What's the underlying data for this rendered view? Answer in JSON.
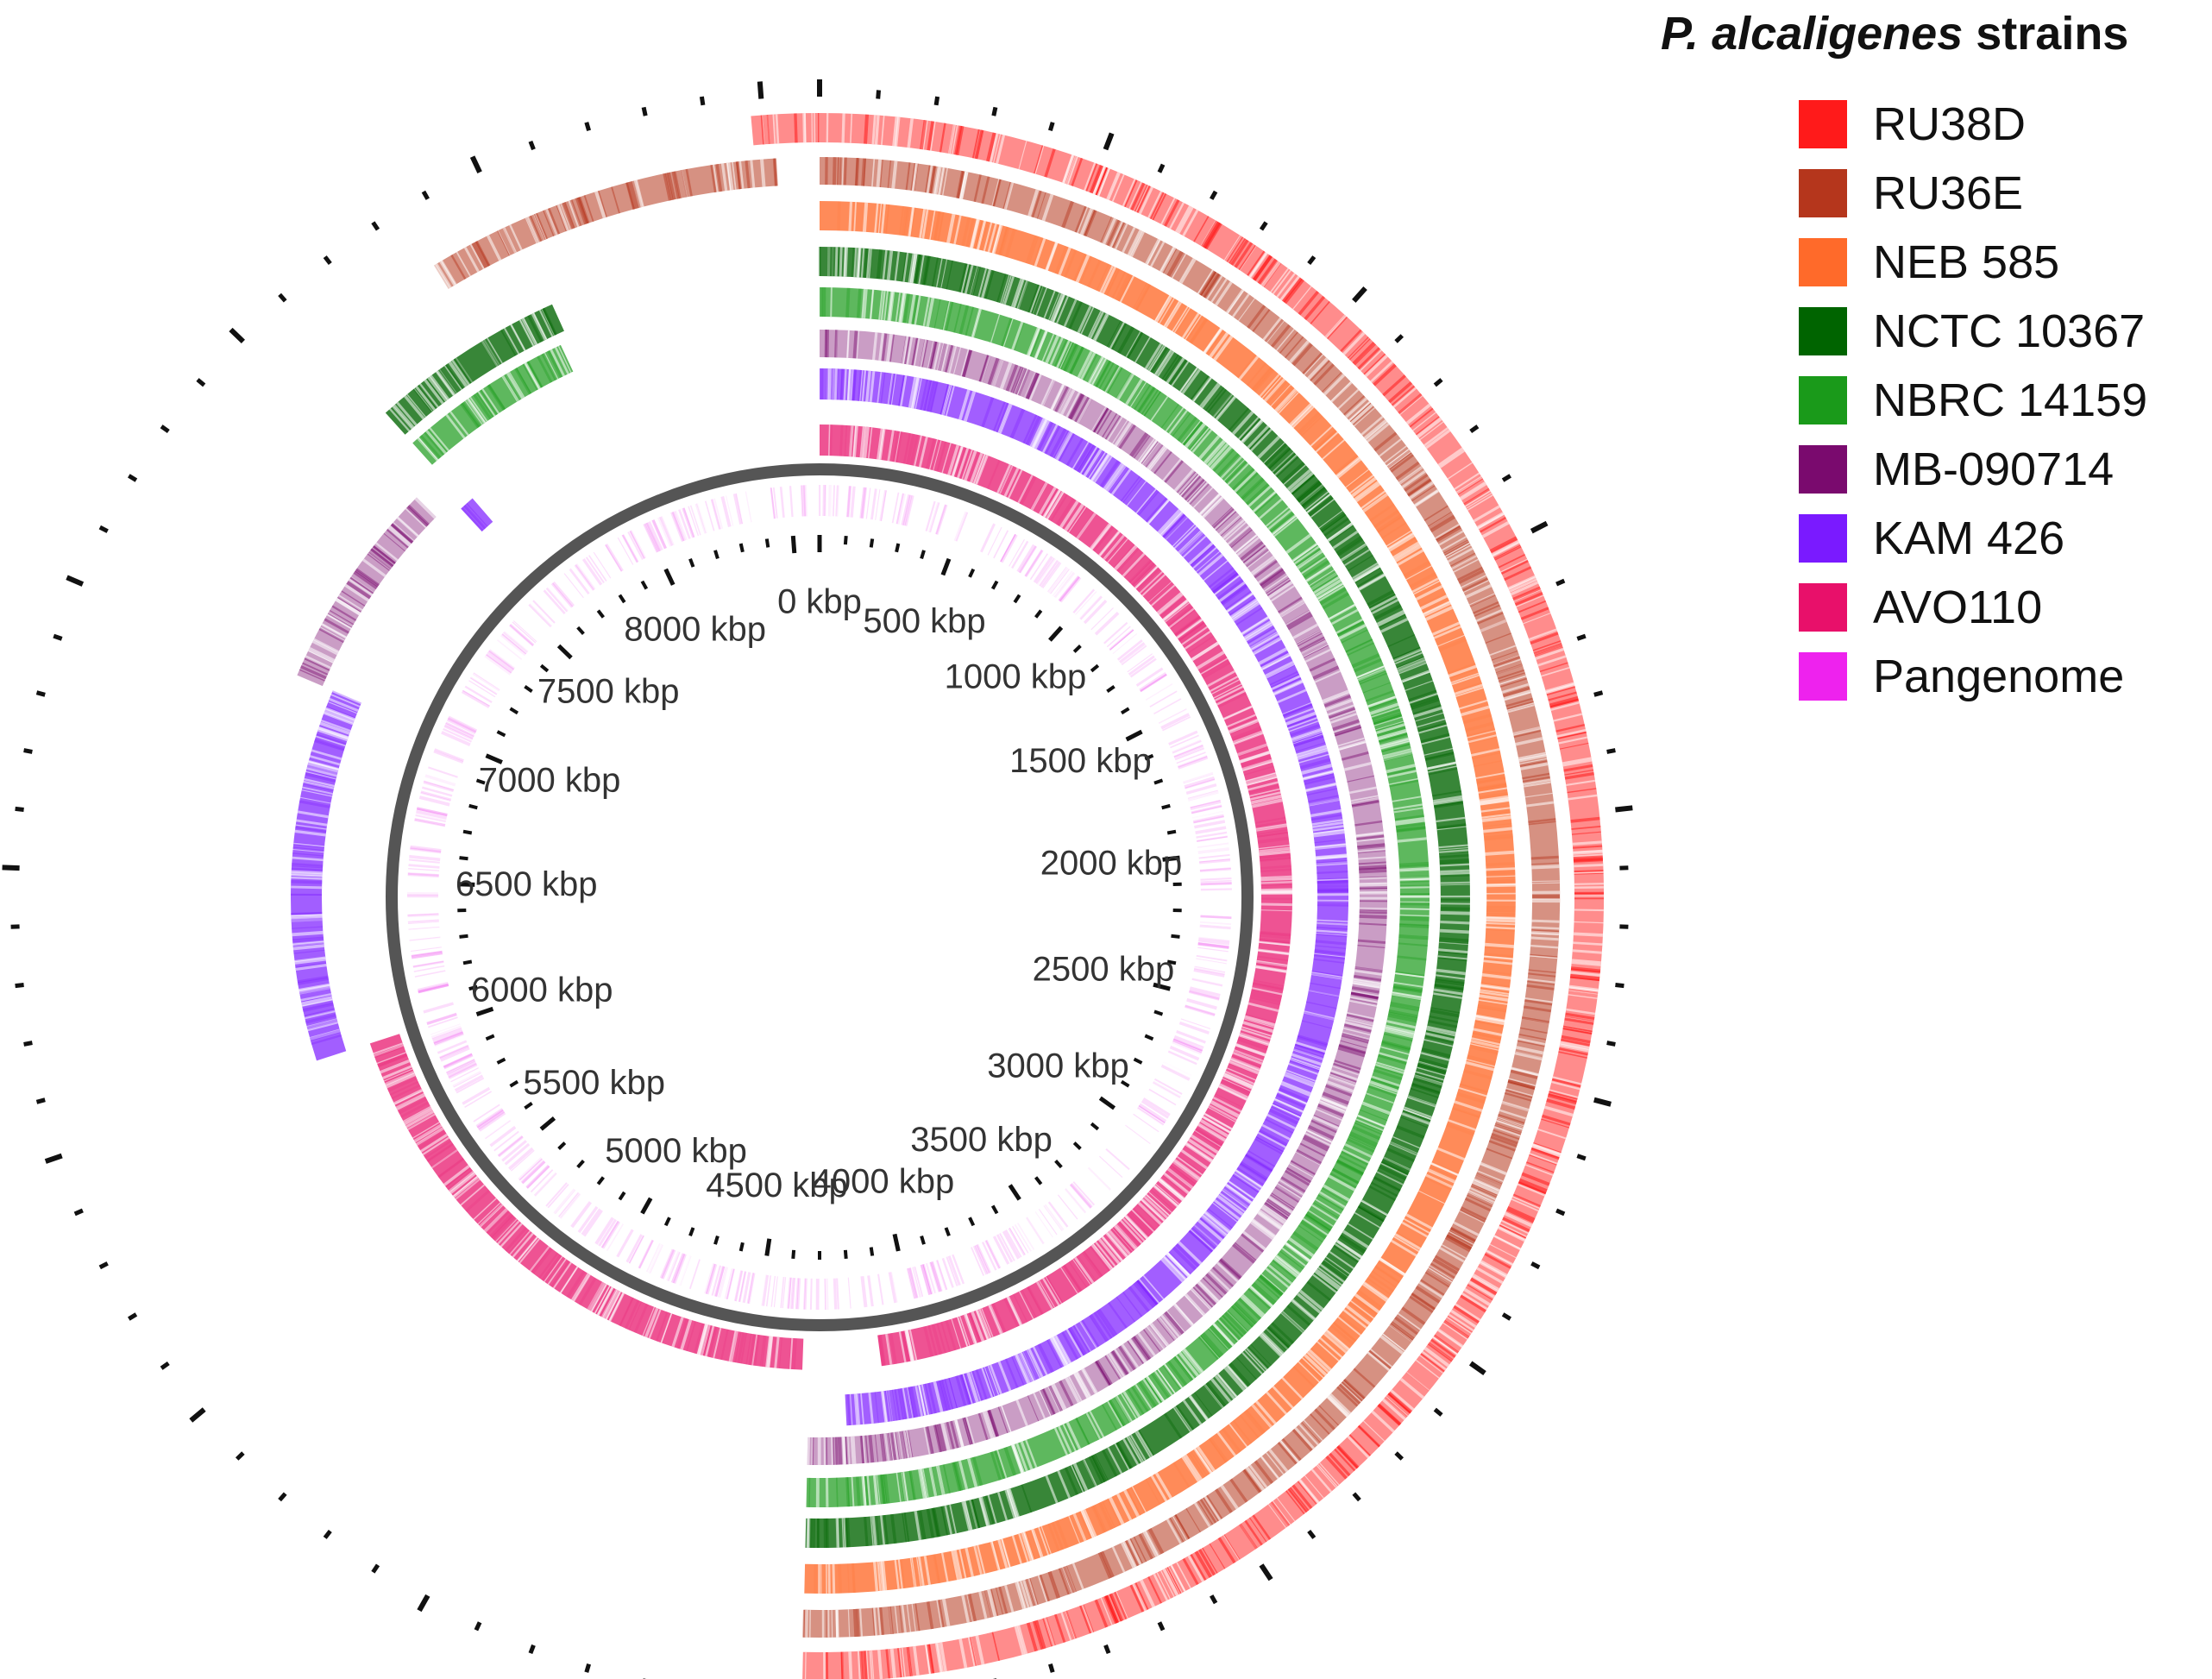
{
  "title": {
    "species": "P. alcaligenes",
    "suffix": " strains"
  },
  "legend": [
    {
      "key": "ru38d",
      "label": "RU38D",
      "color": "#ff1a1a"
    },
    {
      "key": "ru36e",
      "label": "RU36E",
      "color": "#b5361c"
    },
    {
      "key": "neb585",
      "label": "NEB 585",
      "color": "#ff6a2a"
    },
    {
      "key": "nctc10367",
      "label": "NCTC 10367",
      "color": "#006400"
    },
    {
      "key": "nbrc14159",
      "label": "NBRC 14159",
      "color": "#1a9a1a"
    },
    {
      "key": "mb090714",
      "label": "MB-090714",
      "color": "#7a0a6e"
    },
    {
      "key": "kam426",
      "label": "KAM 426",
      "color": "#7a1aff"
    },
    {
      "key": "avo110",
      "label": "AVO110",
      "color": "#e8106a"
    },
    {
      "key": "pangenome",
      "label": "Pangenome",
      "color": "#ee22ee"
    }
  ],
  "backbone_color": "#555555",
  "genome": {
    "total_kbp": 8600,
    "tick_labels": [
      "0 kbp",
      "500 kbp",
      "1000 kbp",
      "1500 kbp",
      "2000 kbp",
      "2500 kbp",
      "3000 kbp",
      "3500 kbp",
      "4000 kbp",
      "4500 kbp",
      "5000 kbp",
      "5500 kbp",
      "6000 kbp",
      "6500 kbp",
      "7000 kbp",
      "7500 kbp",
      "8000 kbp"
    ],
    "tick_values_kbp": [
      0,
      500,
      1000,
      1500,
      2000,
      2500,
      3000,
      3500,
      4000,
      4500,
      5000,
      5500,
      6000,
      6500,
      7000,
      7500,
      8000
    ]
  },
  "rings": [
    {
      "key": "pangenome",
      "coverage_kbp": [
        [
          0,
          8600
        ]
      ]
    },
    {
      "key": "avo110",
      "coverage_kbp": [
        [
          0,
          4120
        ],
        [
          4350,
          6020
        ]
      ]
    },
    {
      "key": "kam426",
      "coverage_kbp": [
        [
          0,
          4230
        ],
        [
          6020,
          7000
        ],
        [
          7580,
          7620
        ]
      ]
    },
    {
      "key": "mb090714",
      "coverage_kbp": [
        [
          0,
          4330
        ],
        [
          7000,
          7520
        ]
      ]
    },
    {
      "key": "nbrc14159",
      "coverage_kbp": [
        [
          0,
          4330
        ],
        [
          7600,
          8000
        ]
      ]
    },
    {
      "key": "nctc10367",
      "coverage_kbp": [
        [
          0,
          4330
        ],
        [
          7600,
          8020
        ]
      ]
    },
    {
      "key": "neb585",
      "coverage_kbp": [
        [
          0,
          4330
        ]
      ]
    },
    {
      "key": "ru36e",
      "coverage_kbp": [
        [
          0,
          4330
        ],
        [
          7850,
          8520
        ]
      ]
    },
    {
      "key": "ru38d",
      "coverage_kbp": [
        [
          0,
          4330
        ],
        [
          8480,
          8600
        ]
      ]
    }
  ]
}
